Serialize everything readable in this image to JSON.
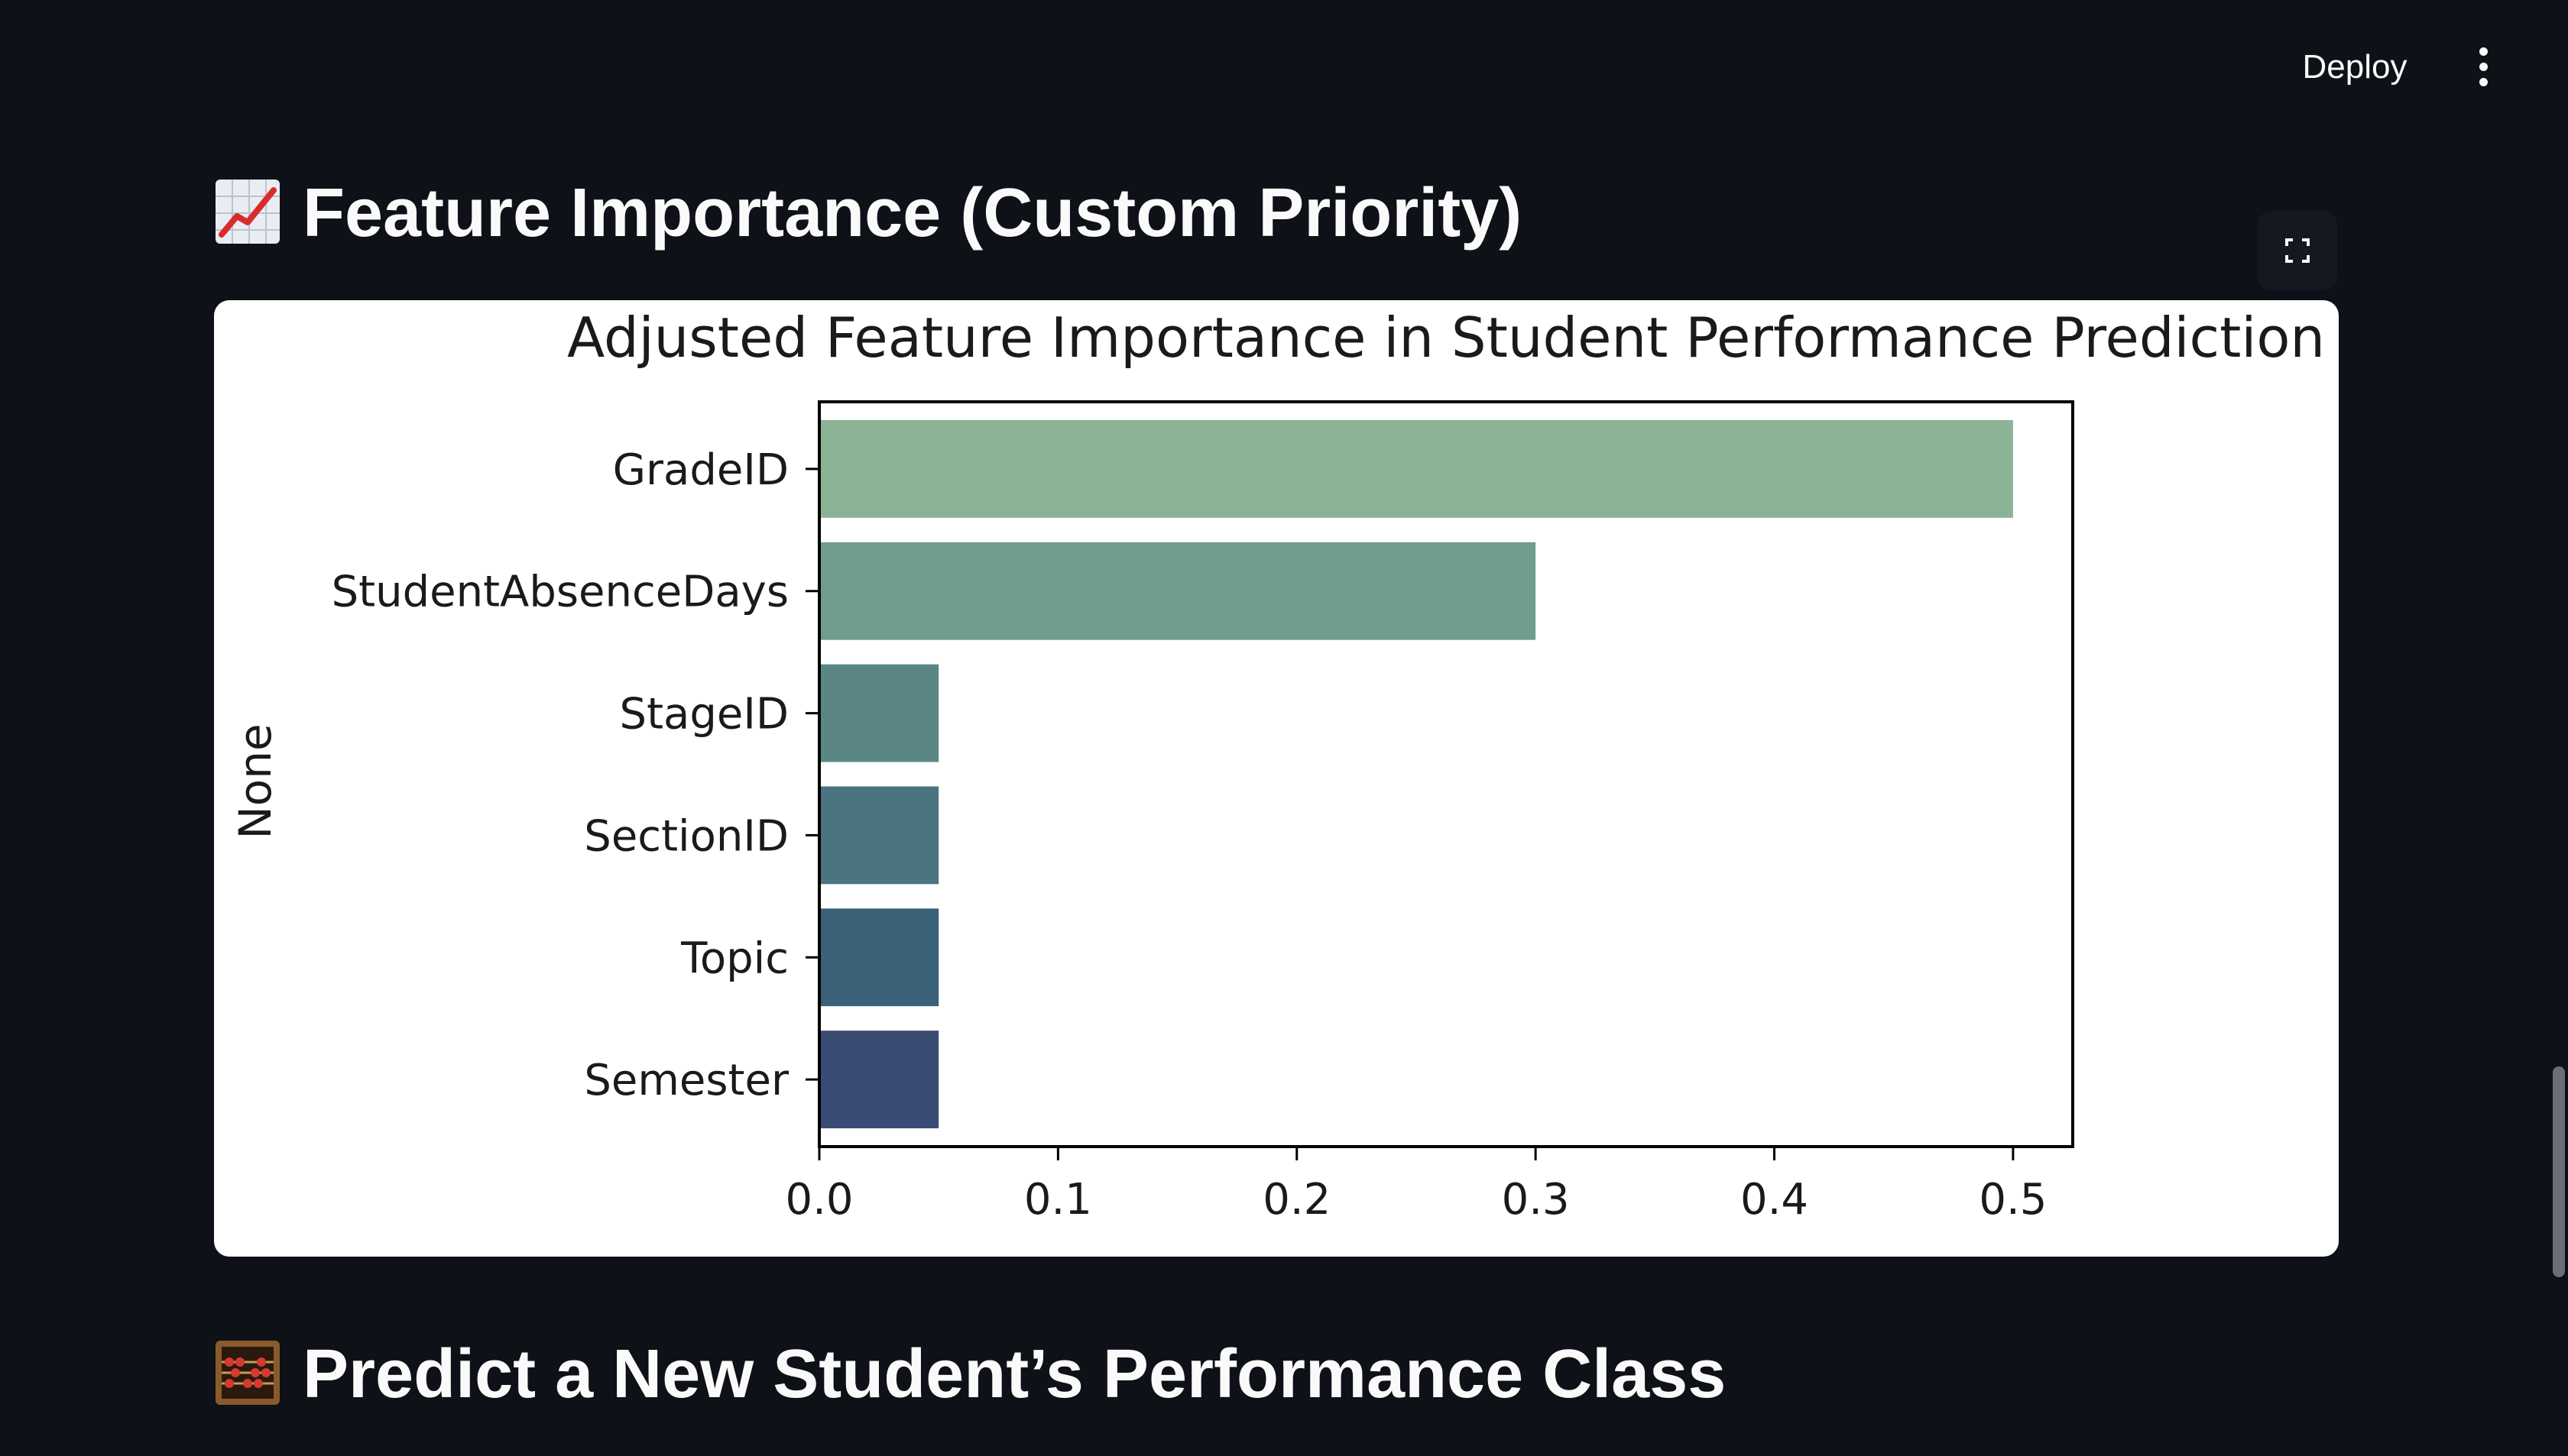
{
  "toolbar": {
    "deploy_label": "Deploy",
    "menu_icon": "kebab-menu-icon"
  },
  "sections": [
    {
      "emoji_icon": "chart-increasing-icon",
      "title": "Feature Importance (Custom Priority)"
    },
    {
      "emoji_icon": "abacus-icon",
      "title": "Predict a New Student’s Performance Class"
    }
  ],
  "fullscreen_icon": "fullscreen-icon",
  "chart_data": {
    "type": "bar",
    "orientation": "horizontal",
    "title": "Adjusted Feature Importance in Student Performance Prediction",
    "ylabel": "None",
    "xlabel": "",
    "categories": [
      "GradeID",
      "StudentAbsenceDays",
      "StageID",
      "SectionID",
      "Topic",
      "Semester"
    ],
    "values": [
      0.5,
      0.3,
      0.05,
      0.05,
      0.05,
      0.05
    ],
    "colors": [
      "#8db397",
      "#6f9c8e",
      "#5a8785",
      "#4a7580",
      "#3b6178",
      "#3a4b74"
    ],
    "xlim": [
      0.0,
      0.525
    ],
    "xticks": [
      "0.0",
      "0.1",
      "0.2",
      "0.3",
      "0.4",
      "0.5"
    ],
    "grid": false
  }
}
